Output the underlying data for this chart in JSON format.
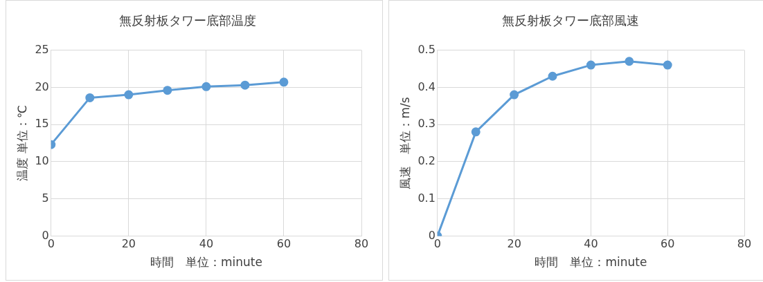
{
  "chart_data": [
    {
      "type": "line",
      "title": "無反射板タワー底部温度",
      "xlabel": "時間　単位：minute",
      "ylabel": "温度 単位：℃",
      "x": [
        0,
        10,
        20,
        30,
        40,
        50,
        60
      ],
      "xlim": [
        0,
        80
      ],
      "xticks": [
        0,
        20,
        40,
        60,
        80
      ],
      "ylim": [
        0,
        25
      ],
      "yticks": [
        0,
        5,
        10,
        15,
        20,
        25
      ],
      "grid": true,
      "marker": "circle",
      "series": [
        {
          "color": "#5b9bd5",
          "values": [
            12.3,
            18.6,
            19.0,
            19.6,
            20.1,
            20.3,
            20.7
          ]
        }
      ]
    },
    {
      "type": "line",
      "title": "無反射板タワー底部風速",
      "xlabel": "時間　単位：minute",
      "ylabel": "風速　単位：m/s",
      "x": [
        0,
        10,
        20,
        30,
        40,
        50,
        60
      ],
      "xlim": [
        0,
        80
      ],
      "xticks": [
        0,
        20,
        40,
        60,
        80
      ],
      "ylim": [
        0,
        0.5
      ],
      "yticks": [
        0,
        0.1,
        0.2,
        0.3,
        0.4,
        0.5
      ],
      "grid": true,
      "marker": "circle",
      "series": [
        {
          "color": "#5b9bd5",
          "values": [
            0,
            0.28,
            0.38,
            0.43,
            0.46,
            0.47,
            0.46
          ]
        }
      ]
    }
  ]
}
